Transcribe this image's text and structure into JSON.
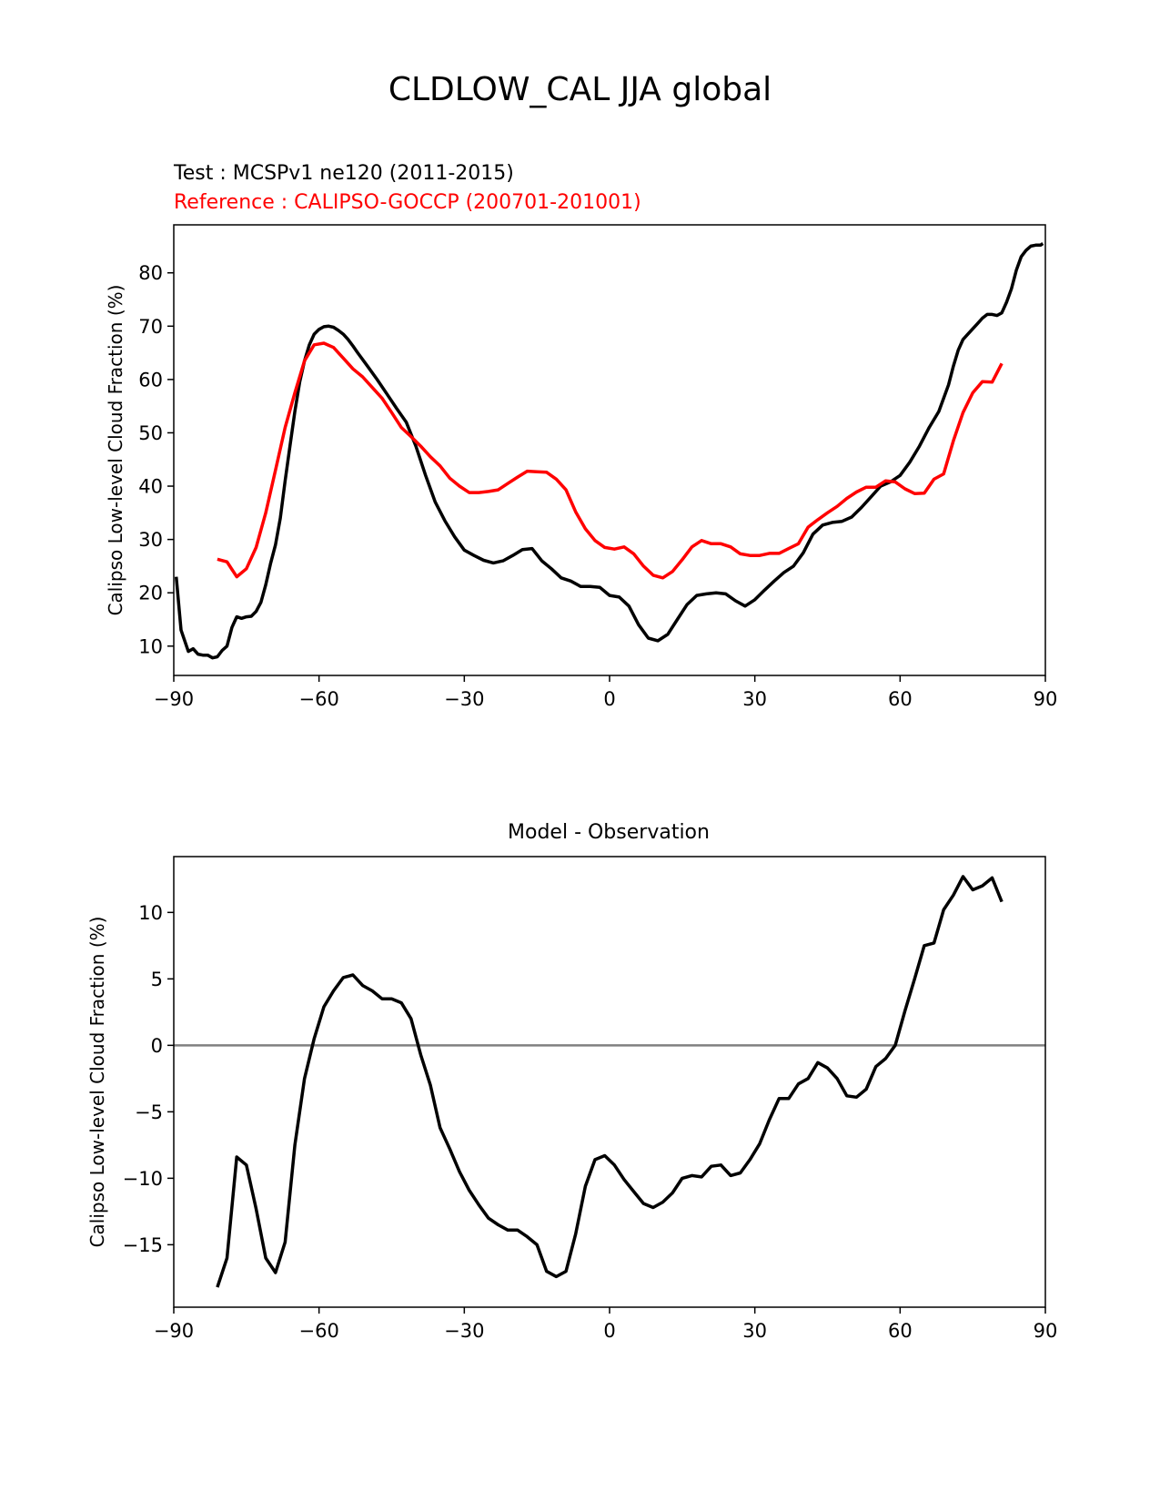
{
  "figure": {
    "title": "CLDLOW_CAL JJA global"
  },
  "chart_data": [
    {
      "type": "line",
      "test_label": "Test : MCSPv1 ne120 (2011-2015)",
      "reference_label": "Reference : CALIPSO-GOCCP (200701-201001)",
      "title": "",
      "xlabel": "",
      "ylabel": "Calipso Low-level Cloud Fraction (%)",
      "xlim": [
        -90,
        90
      ],
      "ylim": [
        4.5,
        89
      ],
      "xticks": [
        -90,
        -60,
        -30,
        0,
        30,
        60,
        90
      ],
      "xtick_labels": [
        "−90",
        "−60",
        "−30",
        "0",
        "30",
        "60",
        "90"
      ],
      "yticks": [
        10,
        20,
        30,
        40,
        50,
        60,
        70,
        80
      ],
      "ytick_labels": [
        "10",
        "20",
        "30",
        "40",
        "50",
        "60",
        "70",
        "80"
      ],
      "grid": false,
      "colors": {
        "test": "#000000",
        "reference": "#ff0000"
      },
      "series": [
        {
          "role": "test",
          "color": "#000000",
          "x": [
            -89.5,
            -88.5,
            -87,
            -86,
            -85,
            -84,
            -83,
            -82,
            -81,
            -80,
            -79,
            -78,
            -77,
            -76,
            -75,
            -74,
            -73,
            -72,
            -71,
            -70,
            -69,
            -68,
            -67,
            -66,
            -65,
            -64,
            -63,
            -62,
            -61,
            -60,
            -59,
            -58,
            -57,
            -56,
            -55,
            -54,
            -53,
            -52,
            -50,
            -48,
            -46,
            -44,
            -42,
            -40,
            -38,
            -36,
            -34,
            -32,
            -30,
            -28,
            -26,
            -24,
            -22,
            -20,
            -18,
            -16,
            -14,
            -12,
            -10,
            -8,
            -6,
            -4,
            -2,
            0,
            2,
            4,
            6,
            8,
            10,
            12,
            14,
            16,
            18,
            20,
            22,
            24,
            26,
            28,
            30,
            32,
            34,
            36,
            38,
            40,
            42,
            44,
            46,
            48,
            50,
            52,
            54,
            56,
            58,
            60,
            62,
            64,
            66,
            68,
            70,
            71,
            72,
            73,
            74,
            75,
            76,
            77,
            78,
            79,
            80,
            81,
            82,
            83,
            84,
            85,
            86,
            87,
            88,
            89,
            89.5
          ],
          "y": [
            23,
            13,
            9,
            9.5,
            8.5,
            8.3,
            8.3,
            7.8,
            8.0,
            9.2,
            10,
            13.5,
            15.5,
            15.2,
            15.5,
            15.6,
            16.5,
            18.2,
            21.5,
            25.5,
            29,
            34,
            41,
            47.5,
            54,
            59.5,
            63.5,
            66.5,
            68.5,
            69.4,
            69.9,
            70,
            69.8,
            69.2,
            68.5,
            67.5,
            66.3,
            65,
            62.5,
            60,
            57.3,
            54.6,
            52,
            47.5,
            42,
            37,
            33.5,
            30.5,
            28,
            27,
            26.1,
            25.6,
            26,
            27,
            28.1,
            28.3,
            26,
            24.5,
            22.8,
            22.2,
            21.2,
            21.2,
            21,
            19.5,
            19.2,
            17.5,
            14,
            11.5,
            11,
            12.2,
            15,
            17.8,
            19.5,
            19.8,
            20,
            19.8,
            18.5,
            17.5,
            18.7,
            20.5,
            22.2,
            23.8,
            25,
            27.5,
            31,
            32.7,
            33.2,
            33.4,
            34.2,
            36,
            38,
            40,
            40.8,
            42,
            44.5,
            47.5,
            51,
            54,
            59,
            62.5,
            65.5,
            67.5,
            68.5,
            69.5,
            70.5,
            71.5,
            72.2,
            72.2,
            72,
            72.5,
            74.5,
            77,
            80.5,
            83,
            84.2,
            85,
            85.2,
            85.2,
            85.5
          ]
        },
        {
          "role": "reference",
          "color": "#ff0000",
          "x": [
            -81,
            -79,
            -77,
            -75,
            -73,
            -71,
            -69,
            -67,
            -65,
            -63,
            -61,
            -59,
            -57,
            -55,
            -53,
            -51,
            -49,
            -47,
            -45,
            -43,
            -41,
            -39,
            -37,
            -35,
            -33,
            -31,
            -29,
            -27,
            -25,
            -23,
            -21,
            -19,
            -17,
            -15,
            -13,
            -11,
            -9,
            -7,
            -5,
            -3,
            -1,
            1,
            3,
            5,
            7,
            9,
            11,
            13,
            15,
            17,
            19,
            21,
            23,
            25,
            27,
            29,
            31,
            33,
            35,
            37,
            39,
            41,
            43,
            45,
            47,
            49,
            51,
            53,
            55,
            57,
            59,
            61,
            63,
            65,
            67,
            69,
            71,
            73,
            75,
            77,
            79,
            81
          ],
          "y": [
            26.3,
            25.8,
            23,
            24.5,
            28.5,
            35,
            43,
            51,
            57.5,
            63.5,
            66.5,
            66.8,
            66,
            64,
            62,
            60.5,
            58.5,
            56.5,
            53.8,
            51,
            49.3,
            47.5,
            45.5,
            43.8,
            41.5,
            40,
            38.8,
            38.8,
            39,
            39.3,
            40.5,
            41.7,
            42.8,
            42.7,
            42.6,
            41.3,
            39.3,
            35.2,
            32,
            29.8,
            28.5,
            28.2,
            28.6,
            27.3,
            25,
            23.3,
            22.8,
            24,
            26.2,
            28.6,
            29.8,
            29.2,
            29.2,
            28.6,
            27.3,
            27,
            27,
            27.4,
            27.4,
            28.3,
            29.2,
            32.3,
            33.7,
            35,
            36.2,
            37.7,
            38.9,
            39.8,
            39.8,
            41,
            40.8,
            39.5,
            38.6,
            38.7,
            41.3,
            42.3,
            48.5,
            53.8,
            57.5,
            59.6,
            59.5,
            63
          ]
        }
      ]
    },
    {
      "type": "line",
      "title": "Model - Observation",
      "xlabel": "",
      "ylabel": "Calipso Low-level Cloud Fraction (%)",
      "xlim": [
        -90,
        90
      ],
      "ylim": [
        -19.7,
        14.2
      ],
      "xticks": [
        -90,
        -60,
        -30,
        0,
        30,
        60,
        90
      ],
      "xtick_labels": [
        "−90",
        "−60",
        "−30",
        "0",
        "30",
        "60",
        "90"
      ],
      "yticks": [
        -15,
        -10,
        -5,
        0,
        5,
        10
      ],
      "ytick_labels": [
        "−15",
        "−10",
        "−5",
        "0",
        "5",
        "10"
      ],
      "grid": false,
      "zero_line": {
        "y": 0,
        "color": "#808080"
      },
      "colors": {
        "line": "#000000"
      },
      "series": [
        {
          "color": "#000000",
          "x": [
            -81,
            -79,
            -77,
            -75,
            -73,
            -71,
            -69,
            -67,
            -65,
            -63,
            -61,
            -59,
            -57,
            -55,
            -53,
            -51,
            -49,
            -47,
            -45,
            -43,
            -41,
            -39,
            -37,
            -35,
            -33,
            -31,
            -29,
            -27,
            -25,
            -23,
            -21,
            -19,
            -17,
            -15,
            -13,
            -11,
            -9,
            -7,
            -5,
            -3,
            -1,
            1,
            3,
            5,
            7,
            9,
            11,
            13,
            15,
            17,
            19,
            21,
            23,
            25,
            27,
            29,
            31,
            33,
            35,
            37,
            39,
            41,
            43,
            45,
            47,
            49,
            51,
            53,
            55,
            57,
            59,
            61,
            63,
            65,
            67,
            69,
            71,
            73,
            75,
            77,
            79,
            81
          ],
          "y": [
            -18.2,
            -16,
            -8.4,
            -9,
            -12.3,
            -16,
            -17.1,
            -14.8,
            -7.5,
            -2.5,
            0.5,
            2.9,
            4.1,
            5.1,
            5.3,
            4.5,
            4.1,
            3.5,
            3.5,
            3.2,
            2,
            -0.7,
            -3,
            -6.2,
            -7.8,
            -9.5,
            -10.9,
            -12,
            -13,
            -13.5,
            -13.9,
            -13.9,
            -14.4,
            -15,
            -17,
            -17.4,
            -17,
            -14.2,
            -10.6,
            -8.6,
            -8.3,
            -9,
            -10.1,
            -11,
            -11.9,
            -12.2,
            -11.8,
            -11.1,
            -10,
            -9.8,
            -9.9,
            -9.1,
            -9,
            -9.8,
            -9.6,
            -8.6,
            -7.4,
            -5.6,
            -4,
            -4,
            -2.9,
            -2.5,
            -1.3,
            -1.7,
            -2.5,
            -3.8,
            -3.9,
            -3.3,
            -1.6,
            -1,
            0,
            2.6,
            5,
            7.5,
            7.7,
            10.2,
            11.3,
            12.7,
            11.7,
            12,
            12.6,
            10.8
          ]
        }
      ]
    }
  ]
}
